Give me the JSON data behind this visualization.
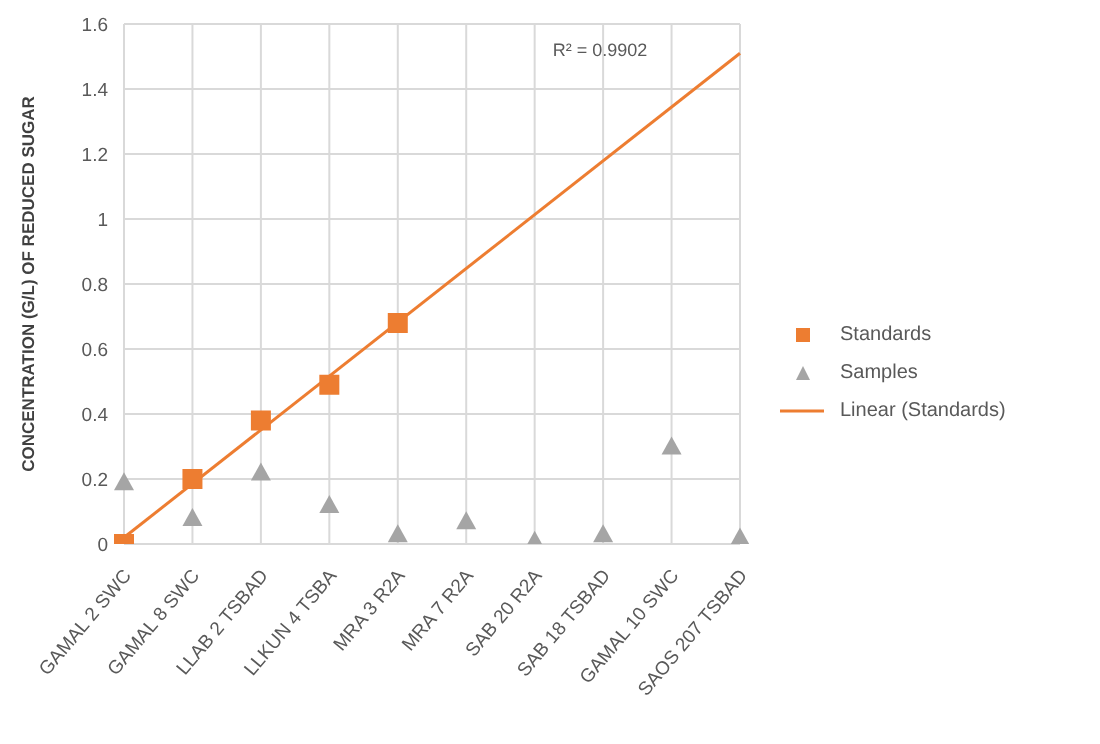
{
  "chart_data": {
    "type": "scatter",
    "ylabel": "CONCENTRATION (G/L) OF REDUCED SUGAR",
    "categories": [
      "GAMAL 2 SWC",
      "GAMAL 8 SWC",
      "LLAB 2 TSBAD",
      "LLKUN 4 TSBA",
      "MRA 3 R2A",
      "MRA 7 R2A",
      "SAB 20 R2A",
      "SAB 18 TSBAD",
      "GAMAL 10 SWC",
      "SAOS 207 TSBAD"
    ],
    "series": [
      {
        "name": "Standards",
        "color": "#ed7d31",
        "marker": "square",
        "values": [
          0,
          0.2,
          0.38,
          0.49,
          0.68,
          null,
          null,
          null,
          null,
          null
        ]
      },
      {
        "name": "Samples",
        "color": "#a5a5a5",
        "marker": "triangle",
        "values": [
          0.19,
          0.08,
          0.22,
          0.12,
          0.03,
          0.07,
          0.01,
          0.03,
          0.3,
          0.02
        ]
      },
      {
        "name": "Linear (Standards)",
        "type": "line",
        "color": "#ed7d31",
        "marker": "none",
        "values": [
          0.02,
          null,
          null,
          null,
          null,
          null,
          null,
          null,
          null,
          1.51
        ]
      }
    ],
    "ylim": [
      0,
      1.6
    ],
    "yticks": [
      0,
      0.2,
      0.4,
      0.6,
      0.8,
      1,
      1.2,
      1.4,
      1.6
    ],
    "grid": true,
    "legend": "right",
    "annotations": [
      "R² = 0.9902"
    ]
  }
}
